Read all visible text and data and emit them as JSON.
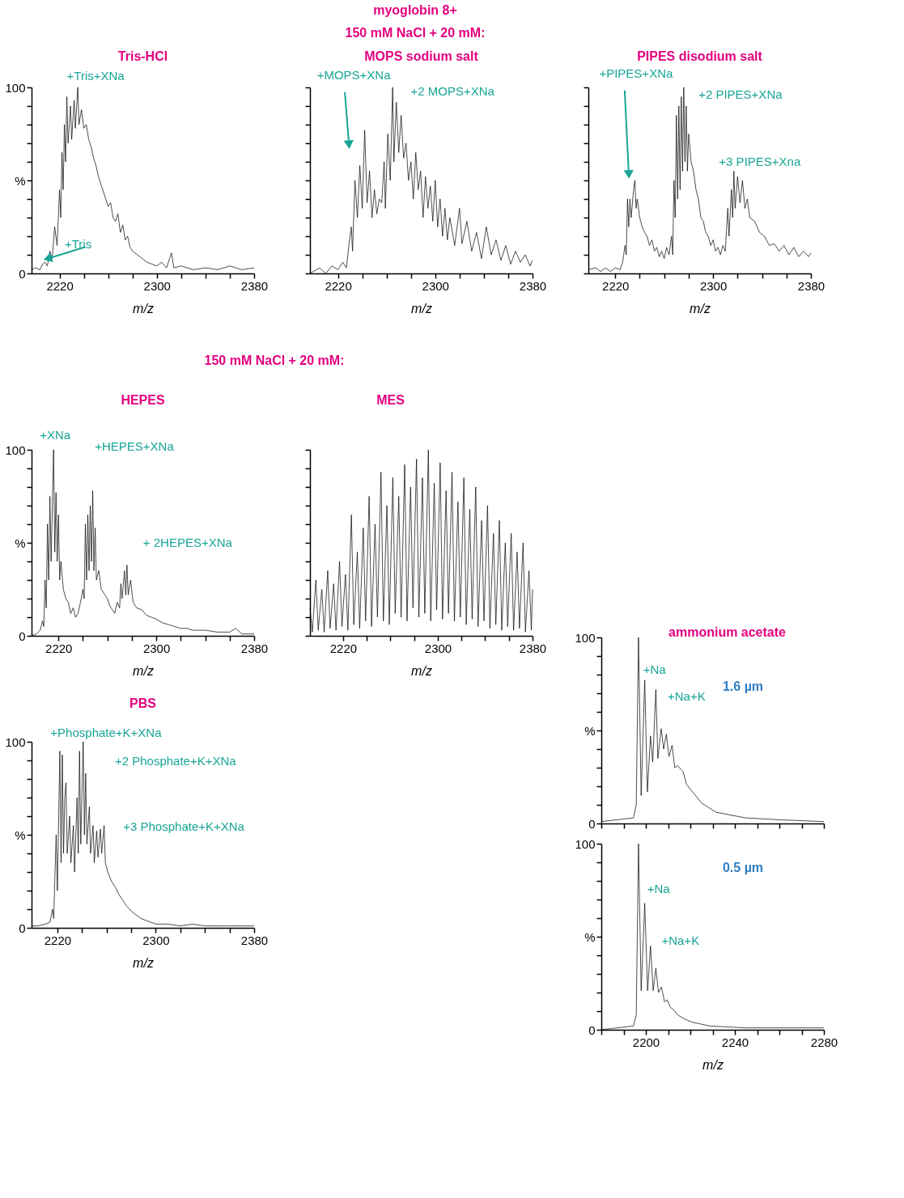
{
  "chart_data": [
    {
      "type": "line",
      "title": "Tris-HCl",
      "xlabel": "m/z",
      "xlim": [
        2197,
        2380
      ],
      "ylim": [
        0,
        100
      ],
      "xticks": [
        2220,
        {
          "value": 2240,
          "label": null
        },
        {
          "value": 2260,
          "label": null
        },
        {
          "value": 2280,
          "label": null
        },
        2300,
        {
          "value": 2320,
          "label": null
        },
        {
          "value": 2340,
          "label": null
        },
        {
          "value": 2360,
          "label": null
        },
        2380
      ],
      "yticks": [
        0,
        {
          "value": 10,
          "label": null
        },
        {
          "value": 20,
          "label": null
        },
        {
          "value": 30,
          "label": null
        },
        {
          "value": 40,
          "label": null
        },
        {
          "value": 50,
          "label": "%"
        },
        {
          "value": 60,
          "label": null
        },
        {
          "value": 70,
          "label": null
        },
        {
          "value": 80,
          "label": null
        },
        {
          "value": 90,
          "label": null
        },
        100
      ],
      "series": [
        {
          "color": "#000000",
          "x": [
            2197,
            2200,
            2204,
            2206,
            2208,
            2210,
            2212,
            2214,
            2216,
            2218,
            2220,
            2221,
            2222,
            2223,
            2224,
            2225,
            2226,
            2227,
            2229,
            2230,
            2232,
            2233,
            2235,
            2236,
            2238,
            2240,
            2242,
            2244,
            2246,
            2248,
            2250,
            2252,
            2254,
            2256,
            2258,
            2260,
            2262,
            2264,
            2266,
            2268,
            2270,
            2272,
            2274,
            2276,
            2278,
            2280,
            2284,
            2288,
            2292,
            2296,
            2300,
            2304,
            2308,
            2312,
            2314,
            2320,
            2330,
            2340,
            2350,
            2360,
            2370,
            2380
          ],
          "values": [
            2,
            3,
            2,
            5,
            6,
            4,
            12,
            8,
            25,
            15,
            45,
            30,
            65,
            45,
            80,
            60,
            95,
            70,
            90,
            72,
            93,
            78,
            100,
            80,
            88,
            78,
            80,
            72,
            68,
            62,
            58,
            52,
            48,
            44,
            40,
            36,
            38,
            30,
            28,
            32,
            22,
            26,
            18,
            20,
            14,
            12,
            10,
            8,
            6,
            5,
            4,
            6,
            3,
            11,
            3,
            4,
            2,
            3,
            2,
            4,
            2,
            3
          ]
        }
      ],
      "annotations": [
        {
          "text": "+Tris+XNa",
          "x": 2235,
          "y": 100
        },
        {
          "text": "+Tris",
          "x": 2208,
          "y": 6
        }
      ]
    },
    {
      "type": "line",
      "title": "MOPS sodium salt",
      "xlabel": "m/z",
      "xlim": [
        2197,
        2380
      ],
      "ylim": [
        0,
        100
      ],
      "tick_labels": "x",
      "xticks": [
        2220,
        {
          "value": 2240,
          "label": null
        },
        {
          "value": 2260,
          "label": null
        },
        {
          "value": 2280,
          "label": null
        },
        2300,
        {
          "value": 2320,
          "label": null
        },
        {
          "value": 2340,
          "label": null
        },
        {
          "value": 2360,
          "label": null
        },
        2380
      ],
      "yticks": [
        0,
        10,
        20,
        30,
        40,
        50,
        60,
        70,
        80,
        90,
        100
      ],
      "series": [
        {
          "color": "#000000",
          "x": [
            2197,
            2205,
            2210,
            2215,
            2220,
            2224,
            2227,
            2229,
            2231,
            2232,
            2234,
            2236,
            2238,
            2240,
            2242,
            2244,
            2246,
            2248,
            2250,
            2252,
            2254,
            2256,
            2258,
            2259,
            2261,
            2263,
            2265,
            2266,
            2268,
            2270,
            2272,
            2274,
            2276,
            2278,
            2280,
            2282,
            2284,
            2286,
            2288,
            2290,
            2292,
            2294,
            2296,
            2298,
            2300,
            2302,
            2304,
            2306,
            2308,
            2310,
            2312,
            2316,
            2320,
            2322,
            2326,
            2330,
            2334,
            2338,
            2342,
            2346,
            2350,
            2354,
            2358,
            2362,
            2366,
            2370,
            2374,
            2378,
            2380
          ],
          "values": [
            0,
            3,
            0,
            4,
            2,
            6,
            3,
            15,
            25,
            12,
            50,
            30,
            58,
            35,
            77,
            38,
            55,
            30,
            45,
            32,
            40,
            38,
            60,
            35,
            75,
            50,
            100,
            60,
            92,
            65,
            85,
            62,
            70,
            50,
            60,
            40,
            65,
            45,
            55,
            30,
            52,
            35,
            47,
            28,
            50,
            25,
            40,
            20,
            35,
            18,
            30,
            15,
            35,
            16,
            28,
            12,
            22,
            8,
            25,
            10,
            18,
            7,
            15,
            5,
            12,
            6,
            10,
            4,
            7
          ]
        }
      ],
      "annotations": [
        "myoglobin 8+",
        "150 mM NaCl + 20 mM:",
        {
          "text": "+MOPS+XNa",
          "x": 2229,
          "y": 70
        },
        {
          "text": "+2 MOPS+XNa",
          "x": 2265,
          "y": 100
        }
      ]
    },
    {
      "type": "line",
      "title": "PIPES disodium salt",
      "xlabel": "m/z",
      "xlim": [
        2198,
        2380
      ],
      "ylim": [
        0,
        100
      ],
      "tick_labels": "x",
      "xticks": [
        2220,
        {
          "value": 2240,
          "label": null
        },
        {
          "value": 2260,
          "label": null
        },
        {
          "value": 2280,
          "label": null
        },
        2300,
        {
          "value": 2320,
          "label": null
        },
        {
          "value": 2340,
          "label": null
        },
        {
          "value": 2360,
          "label": null
        },
        2380
      ],
      "yticks": [
        0,
        10,
        20,
        30,
        40,
        50,
        60,
        70,
        80,
        90,
        100
      ],
      "series": [
        {
          "color": "#000000",
          "x": [
            2198,
            2204,
            2208,
            2212,
            2216,
            2220,
            2224,
            2226,
            2228,
            2229,
            2230,
            2231,
            2232,
            2233,
            2235,
            2236,
            2237,
            2238,
            2240,
            2242,
            2244,
            2246,
            2248,
            2250,
            2252,
            2254,
            2256,
            2258,
            2260,
            2262,
            2264,
            2266,
            2267,
            2268,
            2269,
            2270,
            2271,
            2272,
            2273,
            2274,
            2275,
            2276,
            2277,
            2278,
            2279,
            2280,
            2282,
            2284,
            2286,
            2288,
            2290,
            2292,
            2294,
            2296,
            2298,
            2300,
            2302,
            2304,
            2306,
            2308,
            2310,
            2312,
            2313,
            2315,
            2316,
            2317,
            2318,
            2320,
            2322,
            2324,
            2326,
            2328,
            2330,
            2334,
            2338,
            2342,
            2346,
            2350,
            2354,
            2358,
            2362,
            2366,
            2370,
            2374,
            2378,
            2380
          ],
          "values": [
            2,
            3,
            1,
            3,
            1,
            3,
            2,
            6,
            15,
            10,
            40,
            25,
            40,
            30,
            45,
            50,
            35,
            40,
            30,
            25,
            22,
            20,
            15,
            18,
            12,
            14,
            9,
            12,
            8,
            14,
            10,
            20,
            10,
            50,
            30,
            85,
            40,
            90,
            45,
            95,
            55,
            100,
            60,
            90,
            55,
            75,
            60,
            55,
            45,
            40,
            30,
            28,
            22,
            20,
            15,
            18,
            12,
            14,
            10,
            15,
            12,
            35,
            20,
            45,
            30,
            55,
            35,
            52,
            38,
            50,
            35,
            40,
            30,
            28,
            22,
            20,
            15,
            16,
            12,
            15,
            10,
            14,
            9,
            12,
            9,
            11
          ]
        }
      ],
      "annotations": [
        {
          "text": "+PIPES+XNa",
          "x": 2231,
          "y": 54
        },
        {
          "text": "+2 PIPES+XNa",
          "x": 2276,
          "y": 100
        },
        {
          "text": "+3 PIPES+Xna",
          "x": 2317,
          "y": 55
        }
      ]
    },
    {
      "type": "other",
      "title": "150 mM NaCl + 20 mM:"
    },
    {
      "type": "line",
      "title": "HEPES",
      "xlabel": "m/z",
      "xlim": [
        2198,
        2380
      ],
      "ylim": [
        0,
        100
      ],
      "xticks": [
        2220,
        {
          "value": 2240,
          "label": null
        },
        {
          "value": 2260,
          "label": null
        },
        {
          "value": 2280,
          "label": null
        },
        2300,
        {
          "value": 2320,
          "label": null
        },
        {
          "value": 2340,
          "label": null
        },
        {
          "value": 2360,
          "label": null
        },
        2380
      ],
      "yticks": [
        0,
        {
          "value": 10,
          "label": null
        },
        {
          "value": 20,
          "label": null
        },
        {
          "value": 30,
          "label": null
        },
        {
          "value": 40,
          "label": null
        },
        {
          "value": 50,
          "label": "%"
        },
        {
          "value": 60,
          "label": null
        },
        {
          "value": 70,
          "label": null
        },
        {
          "value": 80,
          "label": null
        },
        {
          "value": 90,
          "label": null
        },
        100
      ],
      "series": [
        {
          "color": "#000000",
          "x": [
            2198,
            2202,
            2205,
            2207,
            2208,
            2209,
            2210,
            2211,
            2212,
            2213,
            2214,
            2216,
            2217,
            2218,
            2219,
            2220,
            2221,
            2222,
            2224,
            2226,
            2228,
            2230,
            2232,
            2234,
            2236,
            2238,
            2240,
            2241,
            2242,
            2243,
            2244,
            2245,
            2246,
            2247,
            2248,
            2249,
            2250,
            2251,
            2253,
            2255,
            2258,
            2260,
            2262,
            2264,
            2266,
            2268,
            2270,
            2271,
            2272,
            2274,
            2275,
            2276,
            2277,
            2279,
            2281,
            2284,
            2288,
            2292,
            2296,
            2300,
            2305,
            2310,
            2315,
            2320,
            2325,
            2330,
            2335,
            2340,
            2350,
            2360,
            2365,
            2370,
            2380
          ],
          "values": [
            0,
            1,
            3,
            8,
            5,
            30,
            15,
            60,
            30,
            75,
            40,
            100,
            45,
            77,
            40,
            65,
            30,
            40,
            25,
            20,
            18,
            12,
            15,
            10,
            12,
            18,
            25,
            20,
            60,
            30,
            65,
            35,
            70,
            40,
            78,
            35,
            58,
            30,
            35,
            25,
            22,
            20,
            16,
            14,
            12,
            18,
            15,
            28,
            20,
            35,
            22,
            38,
            22,
            30,
            18,
            15,
            14,
            11,
            10,
            9,
            7,
            6,
            5,
            4,
            4,
            3,
            3,
            3,
            2,
            2,
            4,
            1,
            1
          ]
        }
      ],
      "annotations": [
        {
          "text": "+XNa",
          "x": 2216,
          "y": 100
        },
        "+HEPES+XNa",
        {
          "text": "+ 2HEPES+XNa",
          "x": 2276,
          "y": 38
        }
      ]
    },
    {
      "type": "line",
      "title": "MES",
      "xlabel": "m/z",
      "xlim": [
        2192,
        2380
      ],
      "ylim": [
        0,
        100
      ],
      "tick_labels": "x",
      "xticks": [
        2220,
        {
          "value": 2240,
          "label": null
        },
        {
          "value": 2260,
          "label": null
        },
        {
          "value": 2280,
          "label": null
        },
        2300,
        {
          "value": 2320,
          "label": null
        },
        {
          "value": 2340,
          "label": null
        },
        {
          "value": 2360,
          "label": null
        },
        2380
      ],
      "yticks": [
        0,
        10,
        20,
        30,
        40,
        50,
        60,
        70,
        80,
        90,
        100
      ],
      "series": [
        {
          "color": "#000000",
          "x": [
            2192,
            2194,
            2197,
            2199,
            2202,
            2204,
            2207,
            2209,
            2212,
            2214,
            2217,
            2219,
            2222,
            2224,
            2227,
            2229,
            2232,
            2234,
            2237,
            2239,
            2242,
            2244,
            2247,
            2249,
            2252,
            2254,
            2257,
            2259,
            2262,
            2264,
            2267,
            2269,
            2272,
            2274,
            2277,
            2279,
            2282,
            2284,
            2287,
            2289,
            2292,
            2294,
            2297,
            2299,
            2302,
            2304,
            2307,
            2309,
            2312,
            2314,
            2317,
            2319,
            2322,
            2324,
            2327,
            2329,
            2332,
            2334,
            2337,
            2339,
            2342,
            2344,
            2347,
            2349,
            2352,
            2354,
            2357,
            2359,
            2362,
            2364,
            2367,
            2369,
            2372,
            2374,
            2377,
            2379,
            2380
          ],
          "values": [
            15,
            2,
            30,
            3,
            25,
            2,
            35,
            4,
            28,
            3,
            40,
            5,
            33,
            3,
            65,
            6,
            45,
            4,
            58,
            8,
            75,
            5,
            60,
            10,
            88,
            8,
            70,
            6,
            85,
            12,
            75,
            10,
            92,
            8,
            80,
            15,
            95,
            10,
            85,
            12,
            100,
            8,
            82,
            14,
            93,
            9,
            78,
            12,
            88,
            8,
            72,
            10,
            85,
            6,
            68,
            9,
            80,
            5,
            62,
            8,
            70,
            4,
            55,
            6,
            62,
            3,
            50,
            5,
            55,
            3,
            45,
            4,
            50,
            2,
            35,
            3,
            25
          ]
        }
      ]
    },
    {
      "type": "line",
      "title": "PBS",
      "xlabel": "m/z",
      "xlim": [
        2199,
        2380
      ],
      "ylim": [
        0,
        100
      ],
      "xticks": [
        2220,
        {
          "value": 2240,
          "label": null
        },
        {
          "value": 2260,
          "label": null
        },
        {
          "value": 2280,
          "label": null
        },
        2300,
        {
          "value": 2320,
          "label": null
        },
        {
          "value": 2340,
          "label": null
        },
        {
          "value": 2360,
          "label": null
        },
        2380
      ],
      "yticks": [
        0,
        {
          "value": 10,
          "label": null
        },
        {
          "value": 20,
          "label": null
        },
        {
          "value": 30,
          "label": null
        },
        {
          "value": 40,
          "label": null
        },
        {
          "value": 50,
          "label": "%"
        },
        {
          "value": 60,
          "label": null
        },
        {
          "value": 70,
          "label": null
        },
        {
          "value": 80,
          "label": null
        },
        {
          "value": 90,
          "label": null
        },
        100
      ],
      "series": [
        {
          "color": "#000000",
          "x": [
            2199,
            2204,
            2210,
            2214,
            2216,
            2217,
            2219,
            2220,
            2222,
            2223,
            2224,
            2225,
            2226,
            2227,
            2228,
            2230,
            2231,
            2233,
            2234,
            2236,
            2237,
            2238,
            2239,
            2241,
            2242,
            2243,
            2244,
            2246,
            2247,
            2249,
            2250,
            2252,
            2253,
            2255,
            2256,
            2258,
            2259,
            2261,
            2264,
            2267,
            2270,
            2273,
            2276,
            2280,
            2284,
            2288,
            2292,
            2296,
            2300,
            2310,
            2320,
            2330,
            2340,
            2350,
            2360,
            2370,
            2380
          ],
          "values": [
            1,
            1,
            2,
            3,
            10,
            5,
            50,
            20,
            95,
            35,
            93,
            40,
            70,
            78,
            40,
            60,
            35,
            55,
            30,
            70,
            40,
            95,
            45,
            100,
            50,
            83,
            45,
            65,
            40,
            55,
            35,
            52,
            38,
            53,
            40,
            55,
            35,
            30,
            25,
            22,
            18,
            15,
            12,
            9,
            7,
            5,
            4,
            3,
            2,
            2,
            1,
            2,
            1,
            1,
            1,
            1,
            1
          ]
        }
      ],
      "annotations": [
        {
          "text": "+Phosphate+K+XNa",
          "x": 2222,
          "y": 95
        },
        {
          "text": "+2 Phosphate+K+XNa",
          "x": 2241,
          "y": 100
        },
        {
          "text": "+3 Phosphate+K+XNa",
          "x": 2255,
          "y": 53
        }
      ]
    },
    {
      "type": "line",
      "title": "ammonium acetate",
      "xlim": [
        2180,
        2280
      ],
      "ylim": [
        0,
        100
      ],
      "tick_labels": "y",
      "xticks": [
        2180,
        2190,
        2200,
        2210,
        2220,
        2230,
        2240,
        2250,
        2260,
        2270,
        2280
      ],
      "yticks": [
        0,
        {
          "value": 10,
          "label": null
        },
        {
          "value": 20,
          "label": null
        },
        {
          "value": 30,
          "label": null
        },
        {
          "value": 40,
          "label": null
        },
        {
          "value": 50,
          "label": "%"
        },
        {
          "value": 60,
          "label": null
        },
        {
          "value": 70,
          "label": null
        },
        {
          "value": 80,
          "label": null
        },
        {
          "value": 90,
          "label": null
        },
        100
      ],
      "series": [
        {
          "color": "#000000",
          "x": [
            2180,
            2194.4,
            2195.7,
            2196.7,
            2197.9,
            2199.5,
            2200.7,
            2202.1,
            2203.1,
            2204.5,
            2205.4,
            2206.9,
            2208,
            2209.2,
            2210.4,
            2211.8,
            2213,
            2214.3,
            2216.7,
            2218.3,
            2225,
            2231.6,
            2244.8,
            2260,
            2280
          ],
          "values": [
            1,
            3,
            10,
            100,
            15,
            77,
            17,
            47,
            33,
            72,
            35,
            51,
            40,
            48,
            36,
            42,
            30,
            31,
            28,
            21,
            11,
            6,
            3,
            2,
            1
          ]
        }
      ],
      "annotations": [
        {
          "text": "+Na",
          "x": 2199.5,
          "y": 77
        },
        {
          "text": "+Na+K",
          "x": 2204.5,
          "y": 72
        },
        "1.6 µm"
      ]
    },
    {
      "type": "line",
      "xlabel": "m/z",
      "xlim": [
        2180,
        2280
      ],
      "ylim": [
        0,
        100
      ],
      "xticks": [
        {
          "value": 2180,
          "label": null
        },
        {
          "value": 2190,
          "label": null
        },
        2200,
        {
          "value": 2210,
          "label": null
        },
        {
          "value": 2220,
          "label": null
        },
        {
          "value": 2230,
          "label": null
        },
        2240,
        {
          "value": 2250,
          "label": null
        },
        {
          "value": 2260,
          "label": null
        },
        {
          "value": 2270,
          "label": null
        },
        2280
      ],
      "yticks": [
        0,
        {
          "value": 10,
          "label": null
        },
        {
          "value": 20,
          "label": null
        },
        {
          "value": 30,
          "label": null
        },
        {
          "value": 40,
          "label": null
        },
        {
          "value": 50,
          "label": "%"
        },
        {
          "value": 60,
          "label": null
        },
        {
          "value": 70,
          "label": null
        },
        {
          "value": 80,
          "label": null
        },
        {
          "value": 90,
          "label": null
        },
        100
      ],
      "series": [
        {
          "color": "#000000",
          "x": [
            2180,
            2194.4,
            2195.7,
            2196.7,
            2197.9,
            2199.5,
            2200.8,
            2202.1,
            2203.3,
            2204.5,
            2205.7,
            2207,
            2208.4,
            2209.7,
            2211,
            2212.3,
            2214.3,
            2217,
            2221,
            2228.9,
            2244.9,
            2280
          ],
          "values": [
            0,
            2,
            8,
            100,
            21,
            68,
            21,
            45,
            21,
            33,
            20,
            23,
            15,
            16,
            12,
            11,
            8,
            6,
            4,
            2,
            1,
            1
          ]
        }
      ],
      "annotations": [
        {
          "text": "+Na",
          "x": 2199.5,
          "y": 68
        },
        {
          "text": "+Na+K",
          "x": 2202.1,
          "y": 45
        },
        "0.5 µm"
      ]
    }
  ]
}
